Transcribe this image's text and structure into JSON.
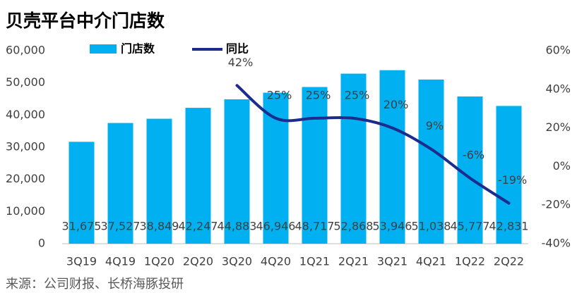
{
  "chart_data": {
    "type": "bar_line",
    "title": "贝壳平台中介门店数",
    "source": "来源：公司财报、长桥海豚投研",
    "categories": [
      "3Q19",
      "4Q19",
      "1Q20",
      "2Q20",
      "3Q20",
      "4Q20",
      "1Q21",
      "2Q21",
      "3Q21",
      "4Q21",
      "1Q22",
      "2Q22"
    ],
    "series": [
      {
        "name": "门店数",
        "type": "bar",
        "color": "#00b0f0",
        "values": [
          31675,
          37527,
          38849,
          42247,
          44883,
          46946,
          48717,
          52868,
          53946,
          51038,
          45777,
          42831
        ],
        "value_labels": [
          "31,675",
          "37,527",
          "38,849",
          "42,247",
          "44,883",
          "46,946",
          "48,717",
          "52,868",
          "53,946",
          "51,038",
          "45,777",
          "42,831"
        ]
      },
      {
        "name": "同比",
        "type": "line",
        "axis": "y2",
        "color": "#1c2c8e",
        "values": [
          null,
          null,
          null,
          null,
          42,
          25,
          25,
          25,
          20,
          9,
          -6,
          -19
        ],
        "value_labels": [
          null,
          null,
          null,
          null,
          "42%",
          "25%",
          "25%",
          "25%",
          "20%",
          "9%",
          "-6%",
          "-19%"
        ]
      }
    ],
    "ylim": [
      0,
      60000
    ],
    "yticks": [
      0,
      {
        "value": 10000,
        "label": "10,000"
      },
      {
        "value": 20000,
        "label": "20,000"
      },
      {
        "value": 30000,
        "label": "30,000"
      },
      {
        "value": 40000,
        "label": "40,000"
      },
      {
        "value": 50000,
        "label": "50,000"
      },
      {
        "value": 60000,
        "label": "60,000"
      }
    ],
    "y2lim": [
      -40,
      60
    ],
    "y2ticks": [
      {
        "value": -40,
        "label": "-40%"
      },
      {
        "value": -20,
        "label": "-20%"
      },
      {
        "value": 0,
        "label": "0%"
      },
      {
        "value": 20,
        "label": "20%"
      },
      {
        "value": 40,
        "label": "40%"
      },
      {
        "value": 60,
        "label": "60%"
      }
    ],
    "grid": false
  }
}
